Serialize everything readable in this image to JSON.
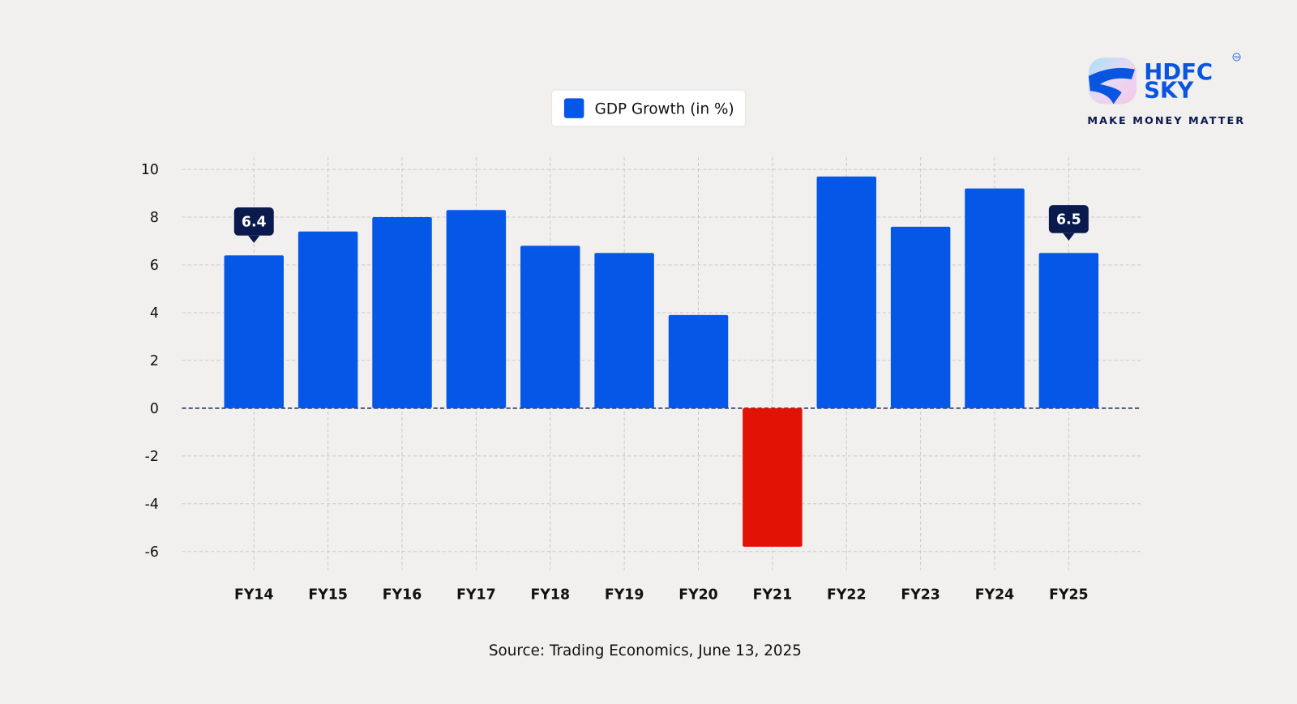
{
  "chart_data": {
    "type": "bar",
    "categories": [
      "FY14",
      "FY15",
      "FY16",
      "FY17",
      "FY18",
      "FY19",
      "FY20",
      "FY21",
      "FY22",
      "FY23",
      "FY24",
      "FY25"
    ],
    "series": [
      {
        "name": "GDP Growth (in %)",
        "values": [
          6.4,
          7.4,
          8.0,
          8.3,
          6.8,
          6.5,
          3.9,
          -5.8,
          9.7,
          7.6,
          9.2,
          6.5
        ]
      }
    ],
    "ylim": [
      -6,
      10
    ],
    "yticks": [
      10,
      8,
      6,
      4,
      2,
      0,
      -2,
      -4,
      -6
    ],
    "grid": true,
    "legend_position": "top-center",
    "annotations": [
      {
        "category": "FY14",
        "label": "6.4"
      },
      {
        "category": "FY25",
        "label": "6.5"
      }
    ],
    "colors": {
      "positive": "#0557e8",
      "negative": "#e21205",
      "callout": "#0a1a4d",
      "zero_line": "#1a2350"
    },
    "source": "Source: Trading Economics, June 13, 2025"
  },
  "logo": {
    "name": "HDFC SKY",
    "line1": "HDFC",
    "line2": "SKY",
    "tagline": "MAKE MONEY MATTER",
    "trademark": "TM"
  }
}
